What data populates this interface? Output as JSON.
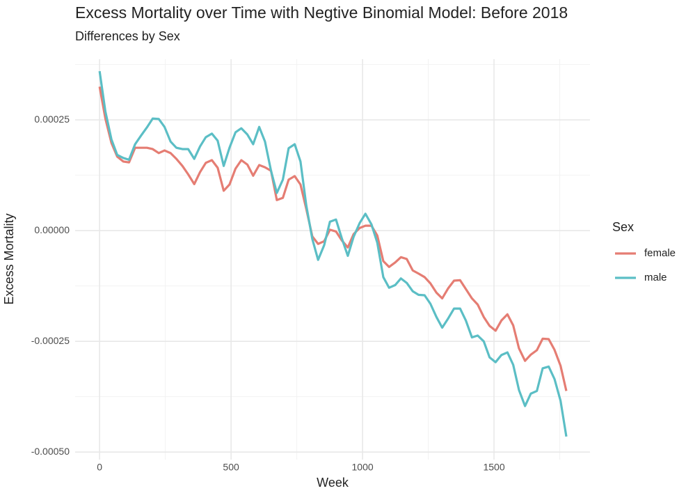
{
  "chart_data": {
    "type": "line",
    "title": "Excess Mortality over Time with Negtive Binomial Model: Before 2018",
    "subtitle": "Differences by Sex",
    "x_label": "Week",
    "y_label": "Excess Mortality",
    "legend_title": "Sex",
    "legend_position": "right",
    "grid": true,
    "x": [
      0,
      22,
      45,
      67,
      90,
      112,
      135,
      157,
      180,
      202,
      225,
      247,
      270,
      292,
      315,
      337,
      360,
      382,
      404,
      427,
      449,
      472,
      494,
      517,
      539,
      562,
      584,
      607,
      629,
      652,
      674,
      697,
      719,
      742,
      764,
      786,
      809,
      831,
      854,
      876,
      899,
      921,
      944,
      966,
      989,
      1011,
      1034,
      1056,
      1079,
      1101,
      1124,
      1146,
      1168,
      1191,
      1213,
      1236,
      1258,
      1281,
      1303,
      1326,
      1348,
      1371,
      1393,
      1416,
      1438,
      1461,
      1483,
      1506,
      1528,
      1551,
      1573,
      1595,
      1618,
      1640,
      1663,
      1685,
      1708,
      1730,
      1753,
      1775
    ],
    "series": [
      {
        "name": "female",
        "color": "#e57d73",
        "values": [
          0.000325,
          0.000253,
          0.000198,
          0.000167,
          0.000156,
          0.000154,
          0.000187,
          0.000187,
          0.000187,
          0.000184,
          0.000175,
          0.000181,
          0.000175,
          0.000162,
          0.000146,
          0.000127,
          0.000105,
          0.000132,
          0.000153,
          0.000159,
          0.000142,
          9e-05,
          0.000104,
          0.00014,
          0.000159,
          0.000149,
          0.000124,
          0.000148,
          0.000143,
          0.000135,
          6.9e-05,
          7.4e-05,
          0.000115,
          0.000123,
          0.000104,
          4.9e-05,
          -1.3e-05,
          -3e-05,
          -2.4e-05,
          2e-06,
          -2e-06,
          -2.2e-05,
          -3.8e-05,
          -8e-06,
          6e-06,
          1.1e-05,
          1.1e-05,
          -1.1e-05,
          -6.9e-05,
          -8.2e-05,
          -7.2e-05,
          -6e-05,
          -6.4e-05,
          -9e-05,
          -9.7e-05,
          -0.000105,
          -0.000119,
          -0.00014,
          -0.000153,
          -0.00013,
          -0.000113,
          -0.000112,
          -0.000132,
          -0.000153,
          -0.000167,
          -0.000195,
          -0.000215,
          -0.000226,
          -0.000203,
          -0.000189,
          -0.000214,
          -0.000266,
          -0.000294,
          -0.00028,
          -0.00027,
          -0.000244,
          -0.000245,
          -0.000269,
          -0.000305,
          -0.000362
        ]
      },
      {
        "name": "male",
        "color": "#5bbec5",
        "values": [
          0.00036,
          0.000269,
          0.000206,
          0.000171,
          0.000164,
          0.00016,
          0.000195,
          0.000214,
          0.000233,
          0.000253,
          0.000252,
          0.000234,
          0.000201,
          0.000187,
          0.000184,
          0.000184,
          0.000162,
          0.00019,
          0.000211,
          0.000219,
          0.000203,
          0.000146,
          0.000187,
          0.000222,
          0.000231,
          0.000217,
          0.000195,
          0.000234,
          0.000201,
          0.000135,
          8.5e-05,
          0.000115,
          0.000186,
          0.000195,
          0.000156,
          5.7e-05,
          -1.9e-05,
          -6.6e-05,
          -3.3e-05,
          2e-05,
          2.5e-05,
          -1.7e-05,
          -5.7e-05,
          -1.4e-05,
          1.7e-05,
          3.8e-05,
          1.4e-05,
          -2.7e-05,
          -0.000105,
          -0.000129,
          -0.000123,
          -0.000108,
          -0.000118,
          -0.000137,
          -0.000145,
          -0.000146,
          -0.000165,
          -0.000195,
          -0.000219,
          -0.000198,
          -0.000176,
          -0.000176,
          -0.000203,
          -0.000241,
          -0.000237,
          -0.00025,
          -0.000286,
          -0.000297,
          -0.000281,
          -0.000275,
          -0.000303,
          -0.00036,
          -0.000396,
          -0.000368,
          -0.000362,
          -0.000311,
          -0.000307,
          -0.000335,
          -0.000384,
          -0.000465
        ]
      }
    ],
    "xlim": [
      -93,
      1865
    ],
    "ylim": [
      -0.000517,
      0.000387
    ],
    "xticks": [
      0,
      500,
      1000,
      1500
    ],
    "x_minor_ticks": [
      250,
      750,
      1250,
      1750
    ],
    "yticks": [
      {
        "value": -0.0005,
        "label": "-0.00050"
      },
      -0.00025,
      {
        "value": 0,
        "label": "0.00000"
      },
      0.00025
    ],
    "y_minor_ticks": [
      -0.000375,
      -0.000125,
      0.000125,
      0.000375
    ]
  }
}
